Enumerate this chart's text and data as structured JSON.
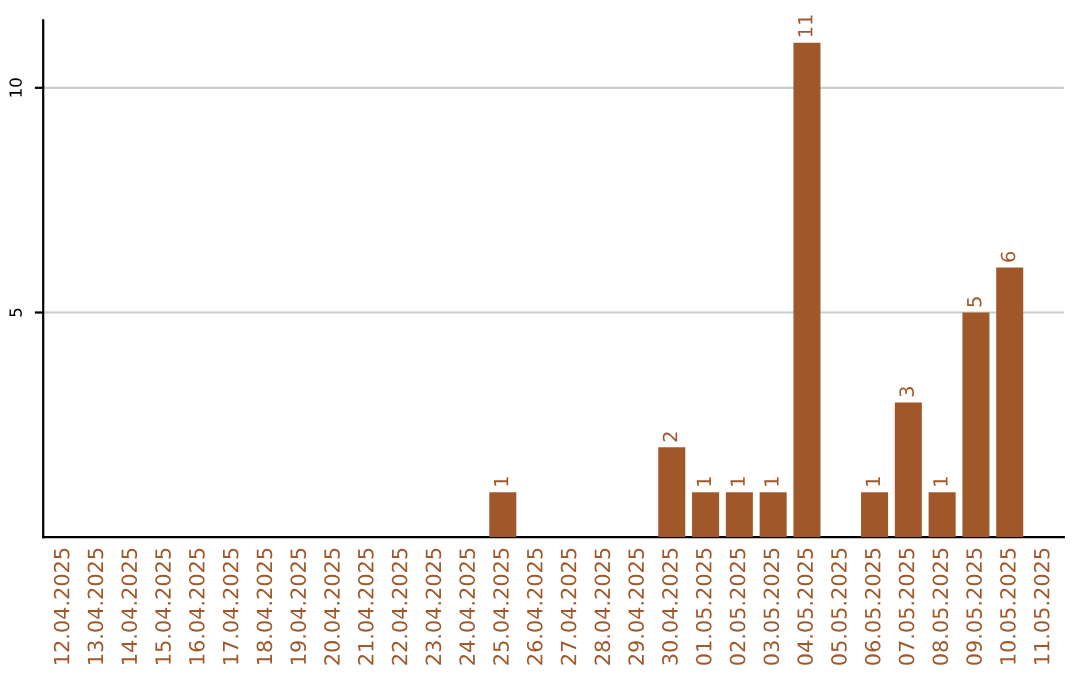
{
  "chart_data": {
    "type": "bar",
    "categories": [
      "12.04.2025",
      "13.04.2025",
      "14.04.2025",
      "15.04.2025",
      "16.04.2025",
      "17.04.2025",
      "18.04.2025",
      "19.04.2025",
      "20.04.2025",
      "21.04.2025",
      "22.04.2025",
      "23.04.2025",
      "24.04.2025",
      "25.04.2025",
      "26.04.2025",
      "27.04.2025",
      "28.04.2025",
      "29.04.2025",
      "30.04.2025",
      "01.05.2025",
      "02.05.2025",
      "03.05.2025",
      "04.05.2025",
      "05.05.2025",
      "06.05.2025",
      "07.05.2025",
      "08.05.2025",
      "09.05.2025",
      "10.05.2025",
      "11.05.2025"
    ],
    "values": [
      0,
      0,
      0,
      0,
      0,
      0,
      0,
      0,
      0,
      0,
      0,
      0,
      0,
      1,
      0,
      0,
      0,
      0,
      2,
      1,
      1,
      1,
      11,
      0,
      1,
      3,
      1,
      5,
      6,
      0
    ],
    "value_labels": [
      null,
      null,
      null,
      null,
      null,
      null,
      null,
      null,
      null,
      null,
      null,
      null,
      null,
      "1",
      null,
      null,
      null,
      null,
      "2",
      "1",
      "1",
      "1",
      "11",
      null,
      "1",
      "3",
      "1",
      "5",
      "6",
      null
    ],
    "color": "#a0582a",
    "ylim": [
      0,
      11.5
    ],
    "yticks": [
      5,
      10
    ],
    "grid": "y"
  }
}
